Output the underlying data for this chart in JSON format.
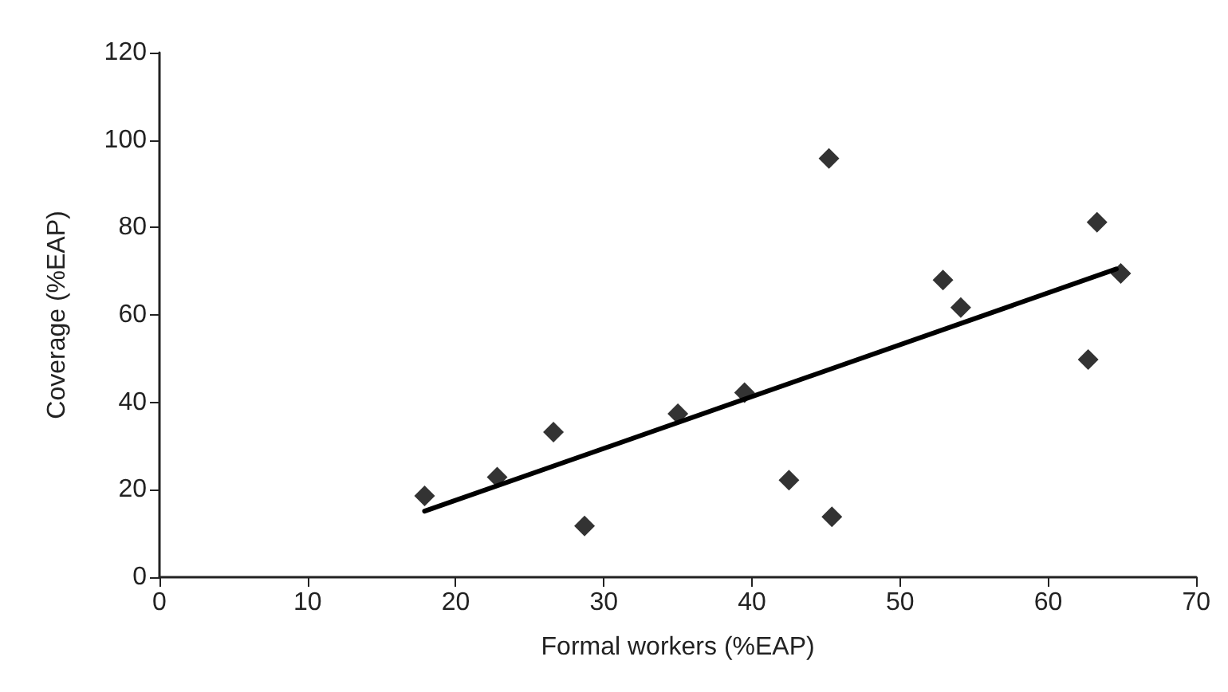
{
  "chart_data": {
    "type": "scatter",
    "xlabel": "Formal workers (%EAP)",
    "ylabel": "Coverage (%EAP)",
    "xlim": [
      0,
      70
    ],
    "xticks": [
      0,
      10,
      20,
      30,
      40,
      50,
      60,
      70
    ],
    "ylim": [
      0,
      120
    ],
    "yticks": [
      0,
      20,
      40,
      60,
      80,
      100,
      120
    ],
    "grid": false,
    "marker": "diamond",
    "series": [
      {
        "color": "#000000",
        "x": [
          17.9,
          22.8,
          26.6,
          28.7,
          35.0,
          39.5,
          42.5,
          45.2,
          45.4,
          52.9,
          54.1,
          62.7,
          63.3,
          64.9
        ],
        "values": [
          18.6,
          22.9,
          33.2,
          11.7,
          37.4,
          42.2,
          22.2,
          95.8,
          13.8,
          68.0,
          61.7,
          49.8,
          81.2,
          69.5
        ]
      },
      {
        "type": "line",
        "color": "#000000",
        "marker": "none",
        "line_style": "solid",
        "x": [
          17.9,
          64.6
        ],
        "values": [
          15.1,
          70.5
        ]
      }
    ]
  }
}
